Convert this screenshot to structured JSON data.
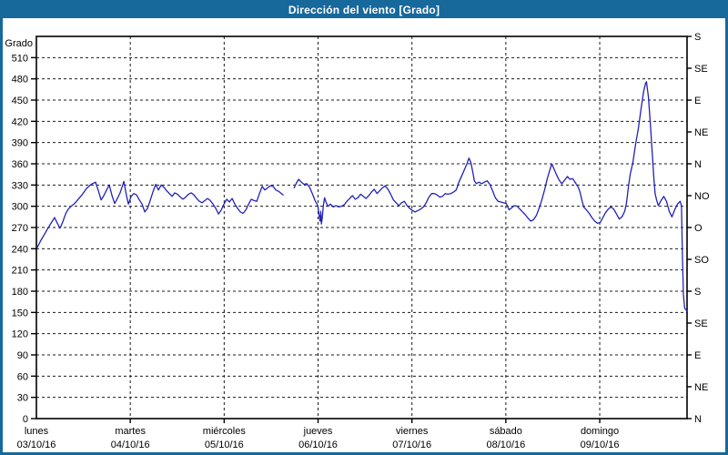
{
  "window": {
    "title": "Dirección del viento [Grado]"
  },
  "colors": {
    "frame": "#17689B",
    "title_text": "#FFFFFF",
    "plot_background": "#FFFFFF",
    "grid": "#1a1a1a",
    "axis": "#000000",
    "line": "#2222B8",
    "text": "#000000"
  },
  "chart_data": {
    "type": "line",
    "title": "Dirección del viento [Grado]",
    "ylabel": "Grado",
    "y_axis": {
      "label": "Grado",
      "min": 0,
      "max": 540,
      "tick_step": 30
    },
    "y2_axis": {
      "type": "compass",
      "tick_step_deg": 45,
      "labels_bottom_to_top": [
        "N",
        "NE",
        "E",
        "SE",
        "S",
        "SO",
        "O",
        "NO",
        "N",
        "NE",
        "E",
        "SE",
        "S"
      ]
    },
    "x_axis": {
      "visible_span_days": 6.93,
      "days": [
        {
          "name": "lunes",
          "date": "03/10/16"
        },
        {
          "name": "martes",
          "date": "04/10/16"
        },
        {
          "name": "miércoles",
          "date": "05/10/16"
        },
        {
          "name": "jueves",
          "date": "06/10/16"
        },
        {
          "name": "viernes",
          "date": "07/10/16"
        },
        {
          "name": "sábado",
          "date": "08/10/16"
        },
        {
          "name": "domingo",
          "date": "09/10/16"
        }
      ]
    },
    "grid": {
      "style": "dashed",
      "horizontal_step_deg": 30,
      "vertical_step": "1 day"
    },
    "series": [
      {
        "name": "Dirección del viento",
        "unit": "Grado",
        "color": "#2222B8",
        "points": [
          [
            0.01,
            242
          ],
          [
            0.048,
            252
          ],
          [
            0.097,
            263
          ],
          [
            0.145,
            274
          ],
          [
            0.194,
            284
          ],
          [
            0.223,
            276
          ],
          [
            0.252,
            269
          ],
          [
            0.281,
            278
          ],
          [
            0.31,
            289
          ],
          [
            0.339,
            296
          ],
          [
            0.369,
            300
          ],
          [
            0.407,
            304
          ],
          [
            0.446,
            310
          ],
          [
            0.485,
            316
          ],
          [
            0.533,
            325
          ],
          [
            0.582,
            331
          ],
          [
            0.63,
            334
          ],
          [
            0.66,
            322
          ],
          [
            0.689,
            309
          ],
          [
            0.718,
            315
          ],
          [
            0.747,
            323
          ],
          [
            0.776,
            330
          ],
          [
            0.805,
            315
          ],
          [
            0.834,
            304
          ],
          [
            0.863,
            311
          ],
          [
            0.892,
            319
          ],
          [
            0.931,
            335
          ],
          [
            0.96,
            315
          ],
          [
            0.98,
            303
          ],
          [
            1.009,
            314
          ],
          [
            1.038,
            318
          ],
          [
            1.067,
            316
          ],
          [
            1.096,
            309
          ],
          [
            1.125,
            303
          ],
          [
            1.154,
            292
          ],
          [
            1.183,
            297
          ],
          [
            1.212,
            308
          ],
          [
            1.241,
            320
          ],
          [
            1.271,
            331
          ],
          [
            1.3,
            323
          ],
          [
            1.329,
            330
          ],
          [
            1.358,
            327
          ],
          [
            1.387,
            322
          ],
          [
            1.416,
            318
          ],
          [
            1.445,
            314
          ],
          [
            1.474,
            319
          ],
          [
            1.503,
            317
          ],
          [
            1.532,
            313
          ],
          [
            1.561,
            310
          ],
          [
            1.59,
            313
          ],
          [
            1.62,
            317
          ],
          [
            1.649,
            319
          ],
          [
            1.678,
            316
          ],
          [
            1.707,
            311
          ],
          [
            1.736,
            307
          ],
          [
            1.765,
            305
          ],
          [
            1.794,
            308
          ],
          [
            1.823,
            311
          ],
          [
            1.852,
            308
          ],
          [
            1.881,
            303
          ],
          [
            1.91,
            297
          ],
          [
            1.94,
            289
          ],
          [
            1.969,
            295
          ],
          [
            1.998,
            303
          ],
          [
            2.027,
            310
          ],
          [
            2.056,
            306
          ],
          [
            2.085,
            311
          ],
          [
            2.114,
            303
          ],
          [
            2.143,
            297
          ],
          [
            2.172,
            292
          ],
          [
            2.202,
            290
          ],
          [
            2.231,
            295
          ],
          [
            2.26,
            303
          ],
          [
            2.289,
            310
          ],
          [
            2.318,
            308
          ],
          [
            2.347,
            307
          ],
          [
            2.376,
            318
          ],
          [
            2.405,
            328
          ],
          [
            2.434,
            323
          ],
          [
            2.463,
            326
          ],
          [
            2.492,
            329
          ],
          [
            2.522,
            328
          ],
          [
            2.551,
            323
          ],
          [
            2.58,
            321
          ],
          [
            2.609,
            318
          ],
          [
            2.628,
            316
          ],
          [
            2.68,
            null
          ],
          [
            2.745,
            326
          ],
          [
            2.774,
            334
          ],
          [
            2.793,
            338
          ],
          [
            2.822,
            334
          ],
          [
            2.851,
            331
          ],
          [
            2.88,
            332
          ],
          [
            2.91,
            327
          ],
          [
            2.939,
            318
          ],
          [
            2.968,
            308
          ],
          [
            2.997,
            301
          ],
          [
            3.011,
            287
          ],
          [
            3.021,
            279
          ],
          [
            3.029,
            293
          ],
          [
            3.036,
            275
          ],
          [
            3.045,
            284
          ],
          [
            3.055,
            300
          ],
          [
            3.07,
            312
          ],
          [
            3.084,
            306
          ],
          [
            3.104,
            300
          ],
          [
            3.133,
            303
          ],
          [
            3.162,
            299
          ],
          [
            3.191,
            301
          ],
          [
            3.22,
            299
          ],
          [
            3.249,
            300
          ],
          [
            3.278,
            302
          ],
          [
            3.307,
            307
          ],
          [
            3.337,
            311
          ],
          [
            3.366,
            315
          ],
          [
            3.395,
            310
          ],
          [
            3.424,
            312
          ],
          [
            3.453,
            317
          ],
          [
            3.482,
            314
          ],
          [
            3.511,
            311
          ],
          [
            3.54,
            315
          ],
          [
            3.569,
            320
          ],
          [
            3.598,
            324
          ],
          [
            3.628,
            318
          ],
          [
            3.657,
            322
          ],
          [
            3.686,
            326
          ],
          [
            3.715,
            329
          ],
          [
            3.744,
            324
          ],
          [
            3.773,
            317
          ],
          [
            3.802,
            309
          ],
          [
            3.831,
            305
          ],
          [
            3.86,
            301
          ],
          [
            3.89,
            305
          ],
          [
            3.919,
            307
          ],
          [
            3.948,
            301
          ],
          [
            3.977,
            297
          ],
          [
            4.006,
            294
          ],
          [
            4.035,
            292
          ],
          [
            4.064,
            294
          ],
          [
            4.093,
            296
          ],
          [
            4.122,
            299
          ],
          [
            4.151,
            305
          ],
          [
            4.18,
            313
          ],
          [
            4.21,
            318
          ],
          [
            4.239,
            318
          ],
          [
            4.268,
            316
          ],
          [
            4.297,
            313
          ],
          [
            4.326,
            314
          ],
          [
            4.355,
            318
          ],
          [
            4.384,
            317
          ],
          [
            4.413,
            318
          ],
          [
            4.442,
            320
          ],
          [
            4.471,
            323
          ],
          [
            4.5,
            334
          ],
          [
            4.53,
            343
          ],
          [
            4.559,
            352
          ],
          [
            4.588,
            361
          ],
          [
            4.607,
            368
          ],
          [
            4.627,
            362
          ],
          [
            4.646,
            350
          ],
          [
            4.665,
            336
          ],
          [
            4.685,
            332
          ],
          [
            4.714,
            334
          ],
          [
            4.743,
            332
          ],
          [
            4.772,
            334
          ],
          [
            4.801,
            336
          ],
          [
            4.83,
            331
          ],
          [
            4.859,
            322
          ],
          [
            4.888,
            312
          ],
          [
            4.917,
            307
          ],
          [
            4.946,
            306
          ],
          [
            4.975,
            305
          ],
          [
            5.005,
            304
          ],
          [
            5.034,
            295
          ],
          [
            5.063,
            298
          ],
          [
            5.092,
            301
          ],
          [
            5.121,
            300
          ],
          [
            5.15,
            296
          ],
          [
            5.179,
            292
          ],
          [
            5.208,
            288
          ],
          [
            5.237,
            283
          ],
          [
            5.266,
            279
          ],
          [
            5.295,
            281
          ],
          [
            5.325,
            287
          ],
          [
            5.354,
            297
          ],
          [
            5.383,
            309
          ],
          [
            5.412,
            323
          ],
          [
            5.441,
            339
          ],
          [
            5.47,
            352
          ],
          [
            5.49,
            360
          ],
          [
            5.509,
            354
          ],
          [
            5.538,
            345
          ],
          [
            5.567,
            337
          ],
          [
            5.596,
            332
          ],
          [
            5.626,
            337
          ],
          [
            5.655,
            342
          ],
          [
            5.684,
            338
          ],
          [
            5.713,
            339
          ],
          [
            5.742,
            333
          ],
          [
            5.771,
            327
          ],
          [
            5.79,
            320
          ],
          [
            5.81,
            309
          ],
          [
            5.829,
            299
          ],
          [
            5.858,
            295
          ],
          [
            5.887,
            290
          ],
          [
            5.917,
            284
          ],
          [
            5.946,
            279
          ],
          [
            5.975,
            276
          ],
          [
            6.004,
            277
          ],
          [
            6.033,
            284
          ],
          [
            6.062,
            291
          ],
          [
            6.091,
            296
          ],
          [
            6.12,
            299
          ],
          [
            6.149,
            296
          ],
          [
            6.179,
            289
          ],
          [
            6.208,
            282
          ],
          [
            6.237,
            285
          ],
          [
            6.266,
            293
          ],
          [
            6.285,
            305
          ],
          [
            6.305,
            327
          ],
          [
            6.324,
            345
          ],
          [
            6.353,
            362
          ],
          [
            6.382,
            388
          ],
          [
            6.411,
            410
          ],
          [
            6.44,
            437
          ],
          [
            6.469,
            463
          ],
          [
            6.489,
            474
          ],
          [
            6.498,
            476
          ],
          [
            6.518,
            455
          ],
          [
            6.537,
            420
          ],
          [
            6.557,
            380
          ],
          [
            6.576,
            340
          ],
          [
            6.59,
            318
          ],
          [
            6.605,
            309
          ],
          [
            6.624,
            301
          ],
          [
            6.653,
            308
          ],
          [
            6.682,
            314
          ],
          [
            6.711,
            307
          ],
          [
            6.74,
            293
          ],
          [
            6.769,
            285
          ],
          [
            6.798,
            295
          ],
          [
            6.828,
            303
          ],
          [
            6.857,
            307
          ],
          [
            6.871,
            300
          ],
          [
            6.881,
            230
          ],
          [
            6.891,
            175
          ],
          [
            6.905,
            156
          ],
          [
            6.93,
            152
          ]
        ]
      }
    ]
  }
}
